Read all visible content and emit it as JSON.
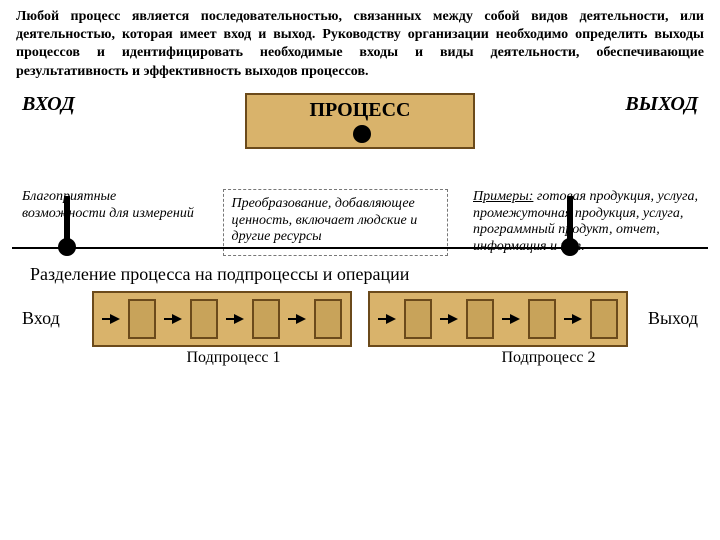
{
  "intro": "Любой процесс является последовательностью, связанных между собой видов деятельности, или деятельностью, которая имеет вход и выход. Руководству организации необходимо определить выходы процессов и идентифицировать необходимые входы и виды деятельности, обеспечивающие результативность и эффективность выходов процессов.",
  "top": {
    "input": "ВХОД",
    "process": "ПРОЦЕСС",
    "output": "ВЫХОД"
  },
  "mid": {
    "left": "Благоприятные возможности для измерений",
    "center": "Преобразование, добавляющее ценность, включает людские и другие ресурсы",
    "right_title": "Примеры:",
    "right": "готовая продукция, услуга, промежуточная продукция, услуга, программный продукт, отчет, информация и т.п."
  },
  "section": "Разделение процесса на подпроцессы и операции",
  "sub": {
    "input": "Вход",
    "output": "Выход",
    "sp1": "Подпроцесс 1",
    "sp2": "Подпроцесс 2"
  },
  "style": {
    "block_fill": "#d9b36b",
    "block_border": "#6b4a1b",
    "op_fill": "#c8a35a",
    "dash_border": "#777777",
    "text_color": "#000000",
    "dot_color": "#000000",
    "ops_per_subprocess": 4
  }
}
